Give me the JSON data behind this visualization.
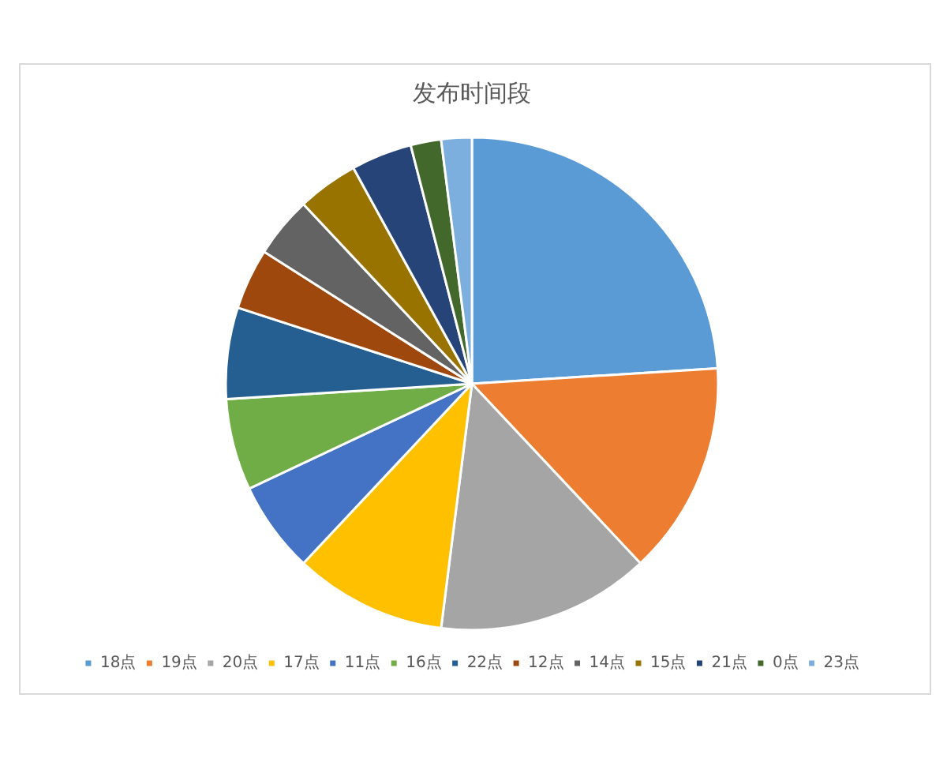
{
  "chart_data": {
    "type": "pie",
    "title": "发布时间段",
    "categories": [
      "18点",
      "19点",
      "20点",
      "17点",
      "11点",
      "16点",
      "22点",
      "12点",
      "14点",
      "15点",
      "21点",
      "0点",
      "23点"
    ],
    "values": [
      24,
      14,
      14,
      10,
      6,
      6,
      6,
      4,
      4,
      4,
      4,
      2,
      2
    ],
    "colors": [
      "#5b9bd5",
      "#ed7d31",
      "#a5a5a5",
      "#ffc000",
      "#4472c4",
      "#70ad47",
      "#255e91",
      "#9e480e",
      "#636363",
      "#997300",
      "#264478",
      "#43682b",
      "#7cafdd"
    ],
    "legend": "bottom"
  }
}
